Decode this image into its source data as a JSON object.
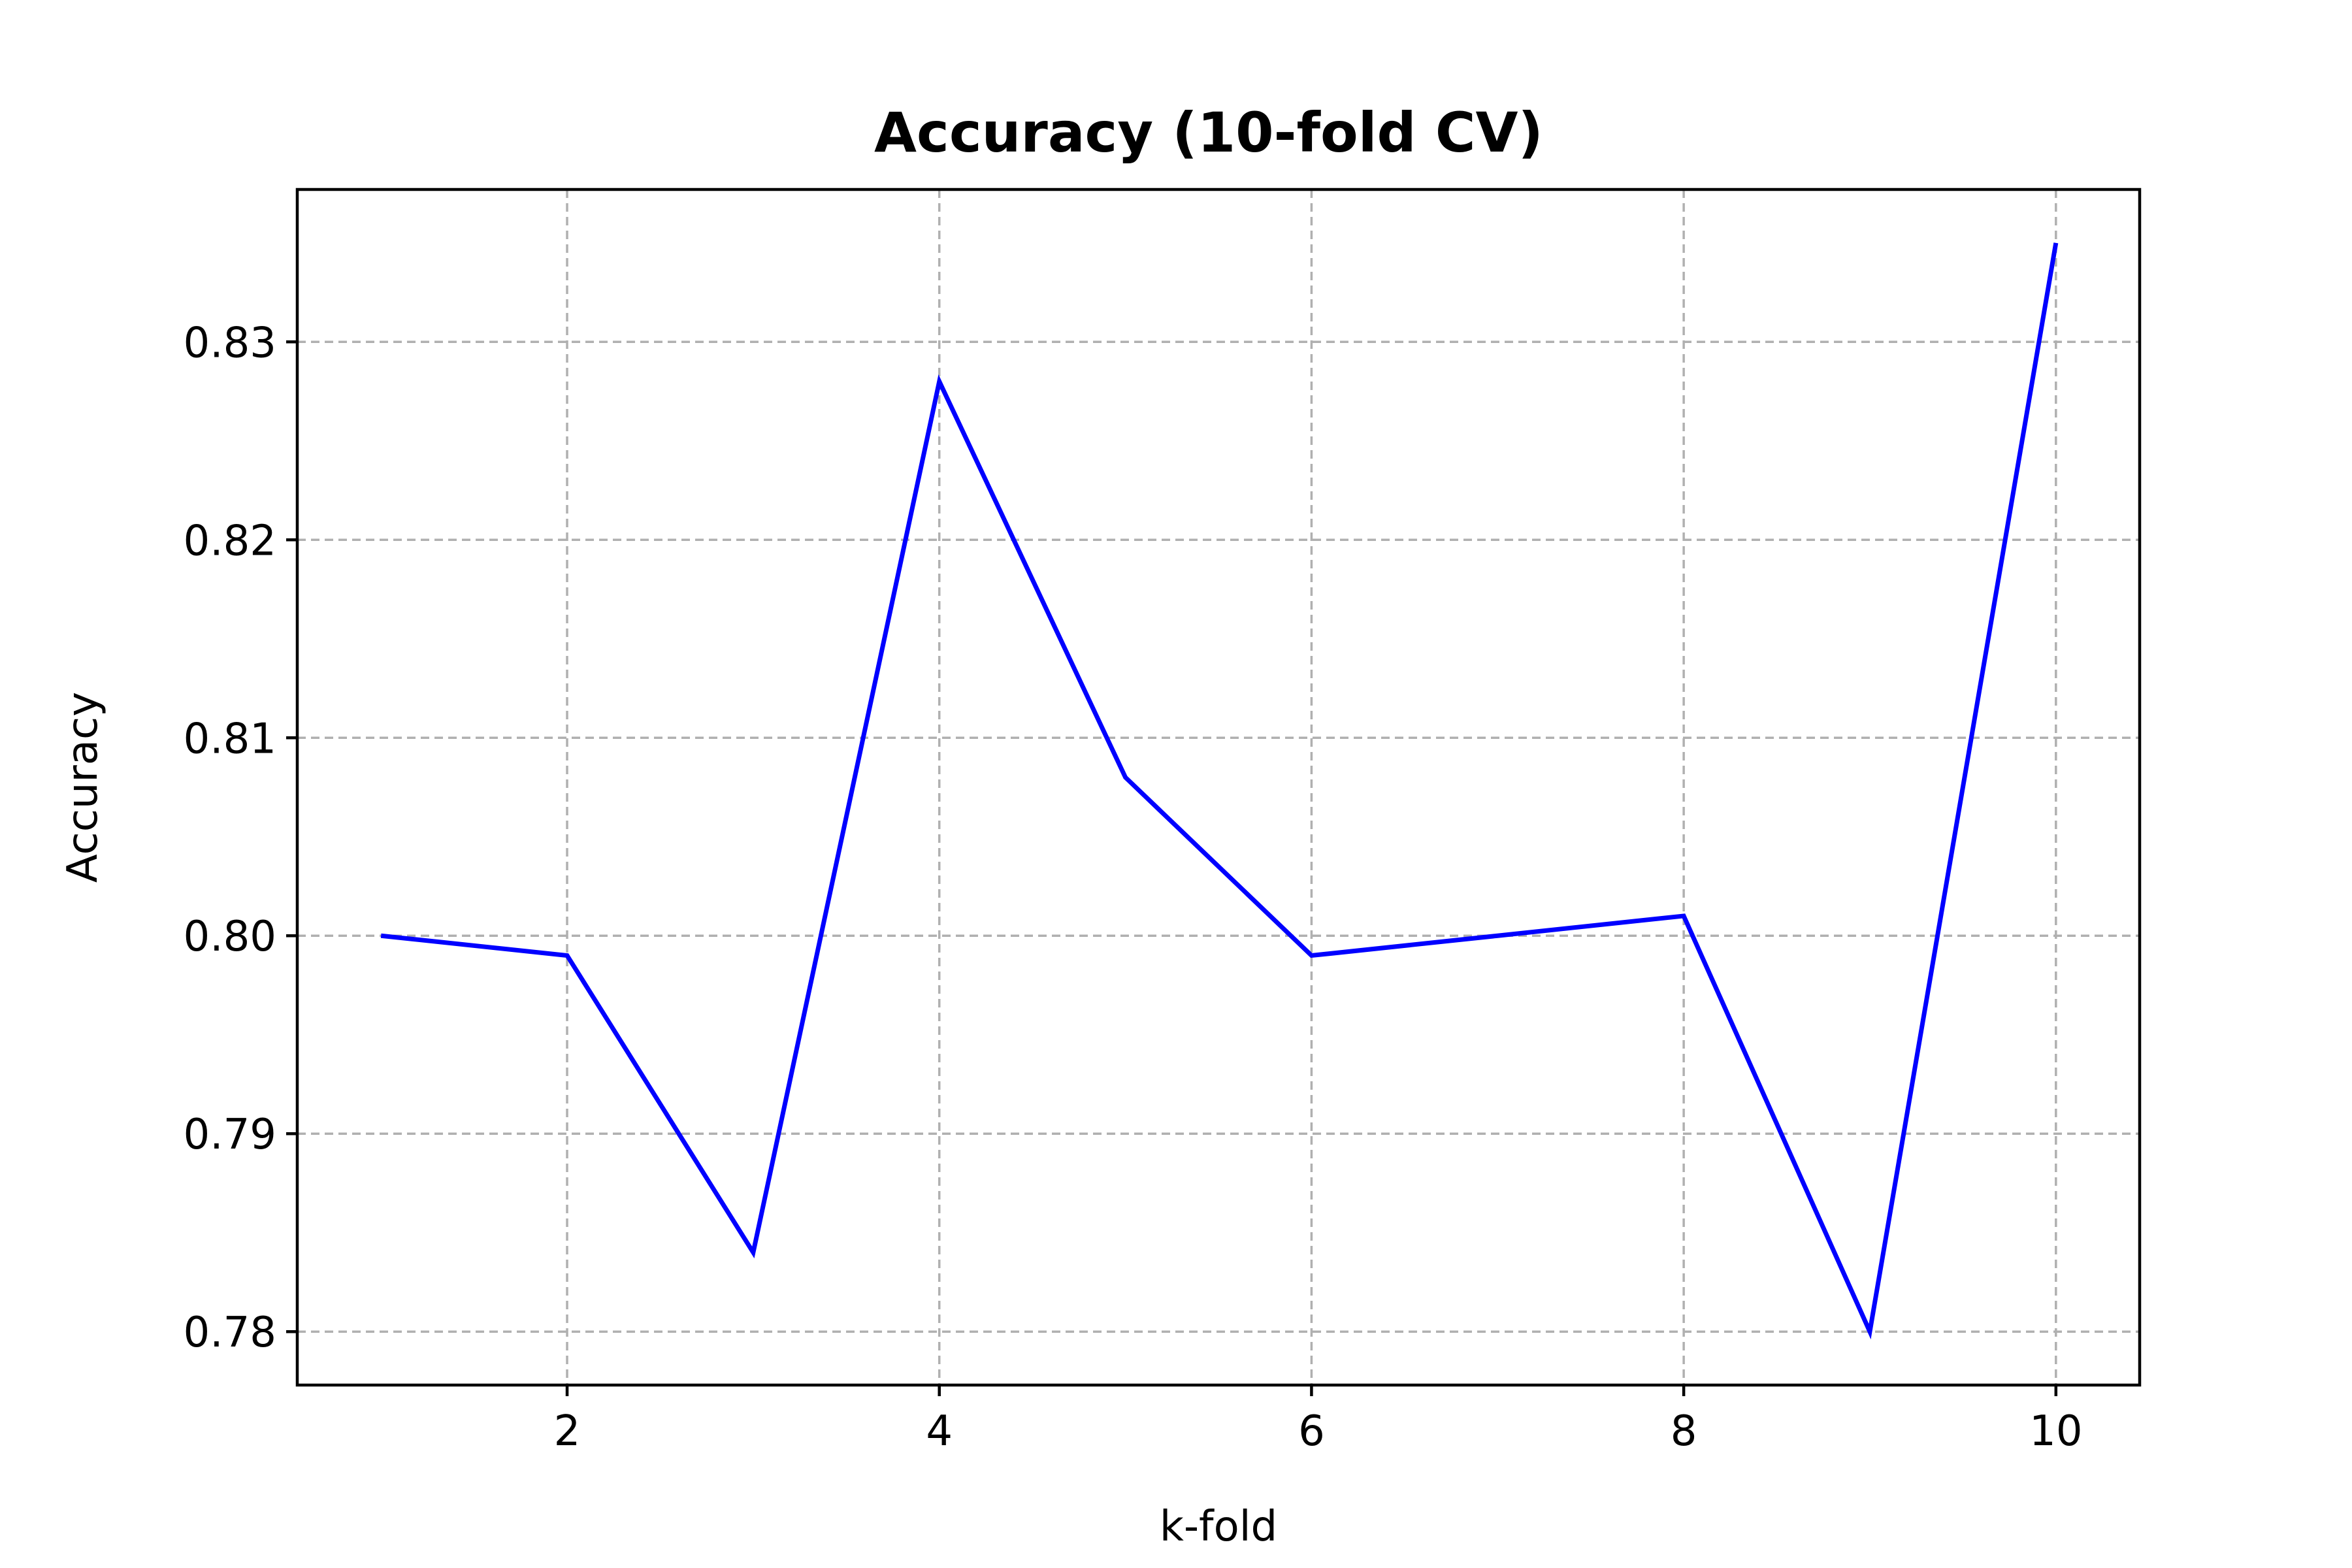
{
  "chart_data": {
    "type": "line",
    "title": "Accuracy (10-fold CV)",
    "xlabel": "k-fold",
    "ylabel": "Accuracy",
    "x": [
      1,
      2,
      3,
      4,
      5,
      6,
      7,
      8,
      9,
      10
    ],
    "series": [
      {
        "values": [
          0.8,
          0.799,
          0.784,
          0.828,
          0.808,
          0.799,
          0.8,
          0.801,
          0.78,
          0.835
        ],
        "color": "#0000ff"
      }
    ],
    "xlim": [
      0.55,
      10.45
    ],
    "ylim": [
      0.7773,
      0.8377
    ],
    "xticks": [
      2,
      4,
      6,
      8,
      10
    ],
    "xtick_labels": [
      "2",
      "4",
      "6",
      "8",
      "10"
    ],
    "yticks": [
      0.78,
      0.79,
      0.8,
      0.81,
      0.82,
      0.83
    ],
    "ytick_labels": [
      "0.78",
      "0.79",
      "0.80",
      "0.81",
      "0.82",
      "0.83"
    ],
    "grid": true,
    "grid_style": "dashed",
    "grid_color": "#b0b0b0"
  }
}
